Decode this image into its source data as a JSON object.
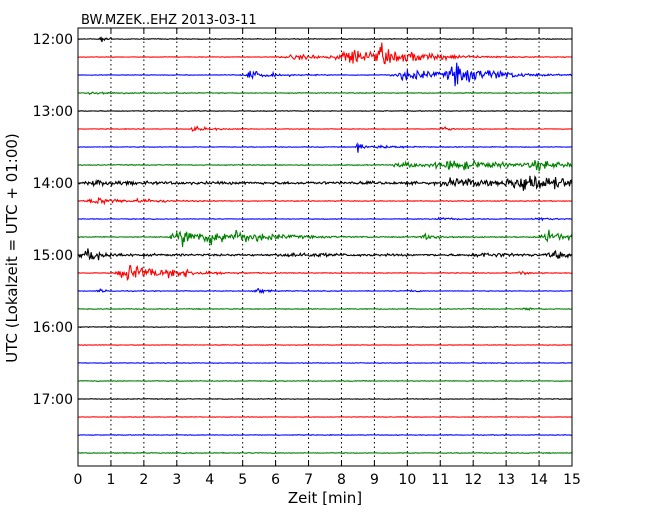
{
  "chart_data": {
    "type": "line",
    "title": "BW.MZEK..EHZ 2013-03-11",
    "xlabel": "Zeit  [min]",
    "ylabel": "UTC (Lokalzeit = UTC + 01:00)",
    "xlim": [
      0,
      15
    ],
    "x_ticks": [
      "0",
      "1",
      "2",
      "3",
      "4",
      "5",
      "6",
      "7",
      "8",
      "9",
      "10",
      "11",
      "12",
      "13",
      "14",
      "15"
    ],
    "y_ticks": [
      "12:00",
      "13:00",
      "14:00",
      "15:00",
      "16:00",
      "17:00"
    ],
    "grid": "vertical dotted at each minute",
    "trace_interval_minutes": 15,
    "trace_colors": [
      "#000000",
      "#ff0000",
      "#0000ff",
      "#008000"
    ],
    "traces": [
      {
        "start": "12:00",
        "color": "#000000",
        "noise": 0.08,
        "bursts": [
          [
            0.7,
            0.2,
            0.6
          ]
        ]
      },
      {
        "start": "12:15",
        "color": "#ff0000",
        "noise": 0.06,
        "bursts": [
          [
            8.3,
            0.9,
            1.8
          ],
          [
            9.2,
            0.2,
            2.2
          ],
          [
            6.8,
            1.6,
            0.5
          ],
          [
            10.2,
            1.2,
            0.9
          ]
        ]
      },
      {
        "start": "12:30",
        "color": "#0000ff",
        "noise": 0.07,
        "bursts": [
          [
            5.3,
            0.6,
            0.9
          ],
          [
            10.0,
            1.0,
            1.3
          ],
          [
            11.5,
            0.7,
            2.2
          ],
          [
            12.6,
            0.8,
            0.6
          ]
        ]
      },
      {
        "start": "12:45",
        "color": "#008000",
        "noise": 0.09,
        "bursts": [
          [
            0.5,
            0.5,
            0.4
          ]
        ]
      },
      {
        "start": "13:00",
        "color": "#000000",
        "noise": 0.08,
        "bursts": []
      },
      {
        "start": "13:15",
        "color": "#ff0000",
        "noise": 0.06,
        "bursts": [
          [
            3.6,
            0.5,
            0.5
          ],
          [
            11.1,
            0.15,
            0.7
          ]
        ]
      },
      {
        "start": "13:30",
        "color": "#0000ff",
        "noise": 0.07,
        "bursts": [
          [
            8.5,
            0.15,
            1.5
          ],
          [
            9.3,
            0.8,
            0.3
          ]
        ]
      },
      {
        "start": "13:45",
        "color": "#008000",
        "noise": 0.09,
        "bursts": [
          [
            11.5,
            1.6,
            1.0
          ],
          [
            14.0,
            0.8,
            0.9
          ],
          [
            10.0,
            1.2,
            0.5
          ]
        ]
      },
      {
        "start": "14:00",
        "color": "#000000",
        "noise": 0.3,
        "bursts": [
          [
            13.6,
            1.2,
            2.0
          ],
          [
            11.5,
            1.2,
            0.8
          ],
          [
            0.6,
            0.6,
            0.5
          ]
        ]
      },
      {
        "start": "14:15",
        "color": "#ff0000",
        "noise": 0.08,
        "bursts": [
          [
            0.6,
            0.8,
            0.7
          ],
          [
            2.0,
            0.7,
            0.3
          ]
        ]
      },
      {
        "start": "14:30",
        "color": "#0000ff",
        "noise": 0.07,
        "bursts": [
          [
            11.0,
            0.5,
            0.3
          ],
          [
            14.0,
            0.5,
            0.3
          ]
        ]
      },
      {
        "start": "14:45",
        "color": "#008000",
        "noise": 0.1,
        "bursts": [
          [
            3.2,
            0.8,
            1.8
          ],
          [
            4.1,
            0.8,
            1.1
          ],
          [
            5.0,
            1.2,
            0.8
          ],
          [
            14.3,
            0.6,
            1.2
          ],
          [
            10.6,
            0.6,
            0.5
          ]
        ]
      },
      {
        "start": "15:00",
        "color": "#000000",
        "noise": 0.22,
        "bursts": [
          [
            0.3,
            0.5,
            1.6
          ],
          [
            6.6,
            1.0,
            0.4
          ],
          [
            14.5,
            0.5,
            0.8
          ],
          [
            12.3,
            0.8,
            0.4
          ]
        ]
      },
      {
        "start": "15:15",
        "color": "#ff0000",
        "noise": 0.07,
        "bursts": [
          [
            1.6,
            0.9,
            2.0
          ],
          [
            3.0,
            0.8,
            0.6
          ],
          [
            13.4,
            0.2,
            0.5
          ]
        ]
      },
      {
        "start": "15:30",
        "color": "#0000ff",
        "noise": 0.07,
        "bursts": [
          [
            5.4,
            0.25,
            0.8
          ],
          [
            10.1,
            0.2,
            0.3
          ],
          [
            0.7,
            0.3,
            0.3
          ]
        ]
      },
      {
        "start": "15:45",
        "color": "#008000",
        "noise": 0.09,
        "bursts": [
          [
            13.6,
            0.15,
            0.5
          ]
        ]
      },
      {
        "start": "16:00",
        "color": "#000000",
        "noise": 0.08,
        "bursts": []
      },
      {
        "start": "16:15",
        "color": "#ff0000",
        "noise": 0.06,
        "bursts": []
      },
      {
        "start": "16:30",
        "color": "#0000ff",
        "noise": 0.07,
        "bursts": []
      },
      {
        "start": "16:45",
        "color": "#008000",
        "noise": 0.09,
        "bursts": []
      },
      {
        "start": "17:00",
        "color": "#000000",
        "noise": 0.08,
        "bursts": []
      },
      {
        "start": "17:15",
        "color": "#ff0000",
        "noise": 0.06,
        "bursts": []
      },
      {
        "start": "17:30",
        "color": "#0000ff",
        "noise": 0.07,
        "bursts": []
      },
      {
        "start": "17:45",
        "color": "#008000",
        "noise": 0.09,
        "bursts": []
      }
    ]
  }
}
